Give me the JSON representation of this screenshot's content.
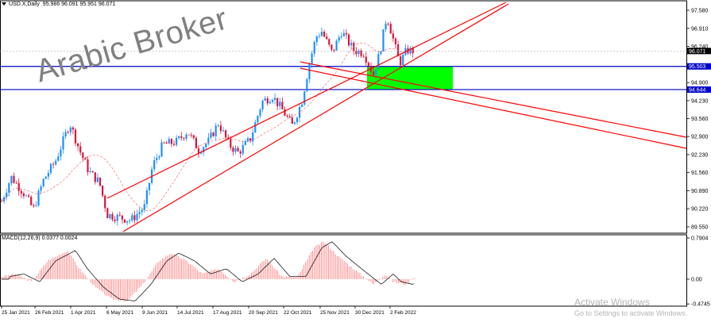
{
  "header": {
    "symbol": "USD.X,Daily",
    "ohlc": "95.986 96.091 95.951 96.071"
  },
  "macd": {
    "label": "MACD(12,26,9) 0.0377 0.0024",
    "axis_ticks": [
      {
        "v": 0.7904,
        "t": "0.7904"
      },
      {
        "v": 0.0,
        "t": "0.00"
      },
      {
        "v": -0.4745,
        "t": "-0.4745"
      }
    ]
  },
  "watermark": "Arabic Broker",
  "activate": {
    "line1": "Activate Windows",
    "line2": "Go to Settings to activate Windows."
  },
  "price_axis": {
    "ticks": [
      {
        "v": 97.58,
        "t": "97.580"
      },
      {
        "v": 96.91,
        "t": "96.910"
      },
      {
        "v": 96.24,
        "t": "96.240"
      },
      {
        "v": 94.9,
        "t": "94.900"
      },
      {
        "v": 94.23,
        "t": "94.230"
      },
      {
        "v": 93.56,
        "t": "93.560"
      },
      {
        "v": 92.9,
        "t": "92.900"
      },
      {
        "v": 92.23,
        "t": "92.230"
      },
      {
        "v": 91.56,
        "t": "91.560"
      },
      {
        "v": 90.89,
        "t": "90.890"
      },
      {
        "v": 90.22,
        "t": "90.220"
      },
      {
        "v": 89.55,
        "t": "89.550"
      }
    ],
    "current_price": {
      "v": 96.071,
      "t": "96.071"
    },
    "level_tags": [
      {
        "v": 95.5,
        "t": "95.503"
      },
      {
        "v": 94.64,
        "t": "94.644"
      }
    ]
  },
  "date_axis": {
    "labels": [
      "25 Jan 2021",
      "26 Feb 2021",
      "1 Apr 2021",
      "6 May 2021",
      "9 Jun 2021",
      "14 Jul 2021",
      "17 Aug 2021",
      "20 Sep 2021",
      "22 Oct 2021",
      "25 Nov 2021",
      "30 Dec 2021",
      "2 Feb 2022"
    ]
  },
  "colors": {
    "bull": "#1e90ff",
    "bear": "#dc143c",
    "channel": "#ff0000",
    "level": "#0000c8",
    "zone": "#00ff00",
    "ma": "#f08080",
    "macd_hist": "#ff8080",
    "macd_signal": "#000000"
  }
}
